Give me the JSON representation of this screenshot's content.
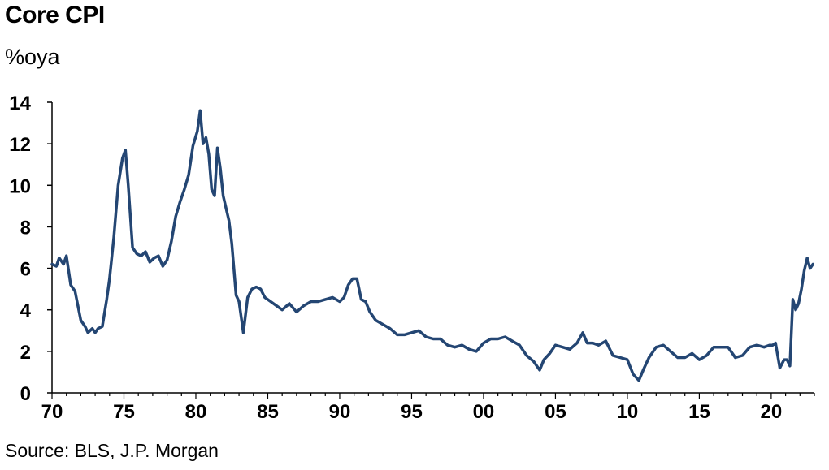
{
  "chart_data": {
    "type": "line",
    "title": "Core CPI",
    "unit_label": "%oya",
    "source": "Source: BLS, J.P. Morgan",
    "xlim": [
      1970,
      2023
    ],
    "ylim": [
      0,
      14
    ],
    "y_ticks": [
      0,
      2,
      4,
      6,
      8,
      10,
      12,
      14
    ],
    "x_ticks": [
      {
        "year": 1970,
        "label": "70"
      },
      {
        "year": 1975,
        "label": "75"
      },
      {
        "year": 1980,
        "label": "80"
      },
      {
        "year": 1985,
        "label": "85"
      },
      {
        "year": 1990,
        "label": "90"
      },
      {
        "year": 1995,
        "label": "95"
      },
      {
        "year": 2000,
        "label": "00"
      },
      {
        "year": 2005,
        "label": "05"
      },
      {
        "year": 2010,
        "label": "10"
      },
      {
        "year": 2015,
        "label": "15"
      },
      {
        "year": 2020,
        "label": "20"
      }
    ],
    "grid": false,
    "line_color": "#244673",
    "series": [
      {
        "x": [
          1970.0,
          1970.3,
          1970.5,
          1970.8,
          1971.0,
          1971.3,
          1971.6,
          1972.0,
          1972.3,
          1972.5,
          1972.8,
          1973.0,
          1973.2,
          1973.5,
          1973.8,
          1974.0,
          1974.3,
          1974.6,
          1974.9,
          1975.1,
          1975.3,
          1975.6,
          1975.9,
          1976.2,
          1976.5,
          1976.8,
          1977.1,
          1977.4,
          1977.7,
          1978.0,
          1978.3,
          1978.6,
          1978.9,
          1979.2,
          1979.5,
          1979.8,
          1980.1,
          1980.3,
          1980.5,
          1980.7,
          1980.9,
          1981.1,
          1981.3,
          1981.5,
          1981.7,
          1981.9,
          1982.1,
          1982.3,
          1982.5,
          1982.8,
          1983.0,
          1983.3,
          1983.6,
          1983.9,
          1984.2,
          1984.5,
          1984.8,
          1985.2,
          1985.6,
          1986.0,
          1986.5,
          1987.0,
          1987.5,
          1988.0,
          1988.5,
          1989.0,
          1989.5,
          1990.0,
          1990.3,
          1990.6,
          1990.9,
          1991.2,
          1991.5,
          1991.8,
          1992.1,
          1992.5,
          1993.0,
          1993.5,
          1994.0,
          1994.5,
          1995.0,
          1995.5,
          1996.0,
          1996.5,
          1997.0,
          1997.5,
          1998.0,
          1998.5,
          1999.0,
          1999.5,
          2000.0,
          2000.5,
          2001.0,
          2001.5,
          2002.0,
          2002.5,
          2003.0,
          2003.5,
          2003.9,
          2004.2,
          2004.6,
          2005.0,
          2005.5,
          2006.0,
          2006.5,
          2006.9,
          2007.2,
          2007.6,
          2008.0,
          2008.5,
          2009.0,
          2009.5,
          2010.0,
          2010.4,
          2010.8,
          2011.1,
          2011.5,
          2012.0,
          2012.5,
          2013.0,
          2013.5,
          2014.0,
          2014.5,
          2015.0,
          2015.5,
          2016.0,
          2016.5,
          2017.0,
          2017.5,
          2018.0,
          2018.5,
          2019.0,
          2019.5,
          2019.9,
          2020.1,
          2020.3,
          2020.6,
          2020.9,
          2021.1,
          2021.3,
          2021.5,
          2021.7,
          2021.9,
          2022.1,
          2022.3,
          2022.5,
          2022.7,
          2022.9
        ],
        "values": [
          6.2,
          6.1,
          6.5,
          6.2,
          6.6,
          5.2,
          4.9,
          3.5,
          3.2,
          2.9,
          3.1,
          2.9,
          3.1,
          3.2,
          4.5,
          5.5,
          7.5,
          10.0,
          11.3,
          11.7,
          10.0,
          7.0,
          6.7,
          6.6,
          6.8,
          6.3,
          6.5,
          6.6,
          6.1,
          6.4,
          7.3,
          8.5,
          9.2,
          9.8,
          10.5,
          11.9,
          12.6,
          13.6,
          12.0,
          12.3,
          11.5,
          9.8,
          9.5,
          11.8,
          10.8,
          9.5,
          8.9,
          8.3,
          7.2,
          4.7,
          4.4,
          2.9,
          4.6,
          5.0,
          5.1,
          5.0,
          4.6,
          4.4,
          4.2,
          4.0,
          4.3,
          3.9,
          4.2,
          4.4,
          4.4,
          4.5,
          4.6,
          4.4,
          4.6,
          5.2,
          5.5,
          5.5,
          4.5,
          4.4,
          3.9,
          3.5,
          3.3,
          3.1,
          2.8,
          2.8,
          2.9,
          3.0,
          2.7,
          2.6,
          2.6,
          2.3,
          2.2,
          2.3,
          2.1,
          2.0,
          2.4,
          2.6,
          2.6,
          2.7,
          2.5,
          2.3,
          1.8,
          1.5,
          1.1,
          1.6,
          1.9,
          2.3,
          2.2,
          2.1,
          2.4,
          2.9,
          2.4,
          2.4,
          2.3,
          2.5,
          1.8,
          1.7,
          1.6,
          0.9,
          0.6,
          1.1,
          1.7,
          2.2,
          2.3,
          2.0,
          1.7,
          1.7,
          1.9,
          1.6,
          1.8,
          2.2,
          2.2,
          2.2,
          1.7,
          1.8,
          2.2,
          2.3,
          2.2,
          2.3,
          2.3,
          2.4,
          1.2,
          1.6,
          1.6,
          1.3,
          4.5,
          4.0,
          4.3,
          5.0,
          5.9,
          6.5,
          6.0,
          6.2
        ]
      }
    ]
  }
}
